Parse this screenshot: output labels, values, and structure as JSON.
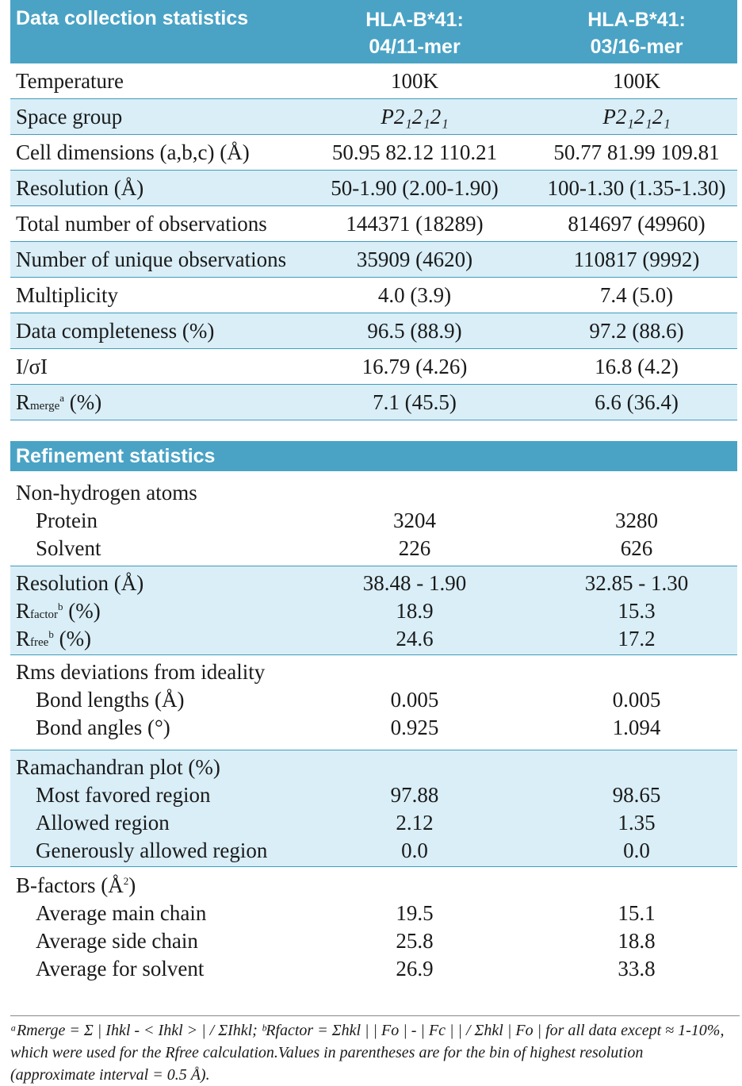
{
  "header1": {
    "title": "Data collection statistics",
    "col1": "HLA-B*41: 04/11-mer",
    "col1_line1": "HLA-B*41:",
    "col1_line2": "04/11-mer",
    "col2_line1": "HLA-B*41:",
    "col2_line2": "03/16-mer"
  },
  "collection": [
    {
      "label": "Temperature",
      "v1": "100K",
      "v2": "100K",
      "shade": false
    },
    {
      "label": "Space group",
      "v1": "P2₁2₁2₁",
      "v2": "P2₁2₁2₁",
      "shade": true
    },
    {
      "label": "Cell dimensions (a,b,c) (Å)",
      "v1": "50.95    82.12    110.21",
      "v2": "50.77    81.99  109.81",
      "shade": false
    },
    {
      "label": "Resolution (Å)",
      "v1": "50-1.90 (2.00-1.90)",
      "v2": "100-1.30 (1.35-1.30)",
      "shade": true
    },
    {
      "label": "Total number of observations",
      "v1": "144371 (18289)",
      "v2": "814697 (49960)",
      "shade": false
    },
    {
      "label": "Number of unique observations",
      "v1": "35909 (4620)",
      "v2": "110817 (9992)",
      "shade": true
    },
    {
      "label": "Multiplicity",
      "v1": "4.0 (3.9)",
      "v2": "7.4 (5.0)",
      "shade": false
    },
    {
      "label": "Data completeness (%)",
      "v1": "96.5 (88.9)",
      "v2": "97.2 (88.6)",
      "shade": true
    },
    {
      "label": "I/σI",
      "v1": "16.79 (4.26)",
      "v2": "16.8 (4.2)",
      "shade": false
    }
  ],
  "rmerge": {
    "label_main": "R",
    "label_sub": "merge",
    "label_sup": "a",
    "label_tail": " (%)",
    "v1": "7.1 (45.5)",
    "v2": "6.6 (36.4)"
  },
  "header2": {
    "title": "Refinement statistics"
  },
  "nonh": {
    "title": "Non-hydrogen atoms",
    "rows": [
      {
        "label": "Protein",
        "v1": "3204",
        "v2": "3280"
      },
      {
        "label": "Solvent",
        "v1": "226",
        "v2": "626"
      }
    ]
  },
  "resgrp": {
    "res": {
      "label": "Resolution (Å)",
      "v1": "38.48 - 1.90",
      "v2": "32.85 - 1.30"
    },
    "rfactor": {
      "main": "R",
      "sub": "factor",
      "sup": "b",
      "tail": " (%)",
      "v1": "18.9",
      "v2": "15.3"
    },
    "rfree": {
      "main": "R",
      "sub": "free",
      "sup": "b",
      "tail": " (%)",
      "v1": "24.6",
      "v2": "17.2"
    }
  },
  "rms": {
    "title": "Rms deviations from ideality",
    "rows": [
      {
        "label": "Bond lengths (Å)",
        "v1": "0.005",
        "v2": "0.005"
      },
      {
        "label": "Bond angles (°)",
        "v1": "0.925",
        "v2": "1.094"
      }
    ]
  },
  "rama": {
    "title": "Ramachandran plot (%)",
    "rows": [
      {
        "label": "Most favored region",
        "v1": "97.88",
        "v2": "98.65"
      },
      {
        "label": "Allowed region",
        "v1": "2.12",
        "v2": "1.35"
      },
      {
        "label": "Generously allowed region",
        "v1": "0.0",
        "v2": "0.0"
      }
    ]
  },
  "bfac": {
    "title_main": "B-factors (Å",
    "title_sup": "2",
    "title_tail": ")",
    "rows": [
      {
        "label": "Average main chain",
        "v1": "19.5",
        "v2": "15.1"
      },
      {
        "label": "Average side chain",
        "v1": "25.8",
        "v2": "18.8"
      },
      {
        "label": "Average for solvent",
        "v1": "26.9",
        "v2": "33.8"
      }
    ]
  },
  "footnote": {
    "line1": "ᵃRmerge = Σ | Ihkl - < Ihkl > |  / ΣIhkl; ᵇRfactor = Σhkl  | | Fo | - | Fc | | / Σhkl | Fo | for all data except ≈ 1-10%,",
    "line2": "which were used for the Rfree calculation.Values in parentheses are for the bin of highest resolution",
    "line3": "(approximate interval = 0.5 Å)."
  }
}
